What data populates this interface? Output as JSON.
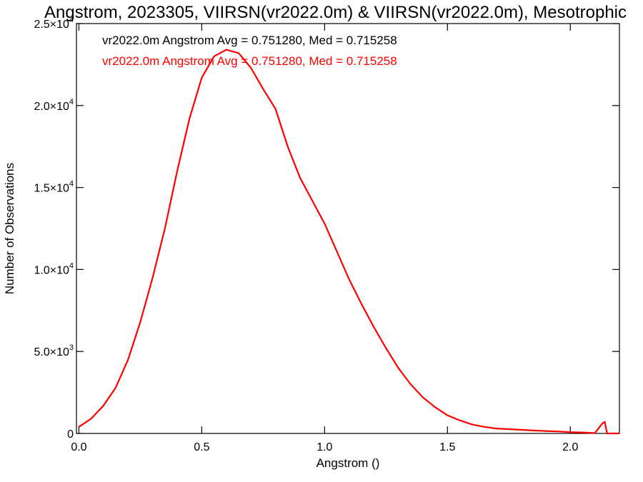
{
  "chart_data": {
    "type": "line",
    "title": "Angstrom, 2023305, VIIRSN(vr2022.0m) & VIIRSN(vr2022.0m), Mesotrophic",
    "xlabel": "Angstrom ()",
    "ylabel": "Number of Observations",
    "xlim": [
      -0.01,
      2.2
    ],
    "ylim": [
      0,
      25000
    ],
    "xticks": [
      0.0,
      0.5,
      1.0,
      1.5,
      2.0
    ],
    "xtick_labels": [
      "0.0",
      "0.5",
      "1.0",
      "1.5",
      "2.0"
    ],
    "yticks": [
      0,
      5000,
      10000,
      15000,
      20000,
      25000
    ],
    "ytick_labels": [
      {
        "mant": "0",
        "exp": ""
      },
      {
        "mant": "5.0×10",
        "exp": "3"
      },
      {
        "mant": "1.0×10",
        "exp": "4"
      },
      {
        "mant": "1.5×10",
        "exp": "4"
      },
      {
        "mant": "2.0×10",
        "exp": "4"
      },
      {
        "mant": "2.5×10",
        "exp": "4"
      }
    ],
    "legend": [
      {
        "text": "vr2022.0m Angstrom Avg = 0.751280, Med = 0.715258",
        "color": "#000000"
      },
      {
        "text": "vr2022.0m Angstrom Avg = 0.751280, Med = 0.715258",
        "color": "#ff0000"
      }
    ],
    "grid": false,
    "series": [
      {
        "color": "#ff0000",
        "x": [
          0.0,
          0.05,
          0.1,
          0.15,
          0.2,
          0.25,
          0.3,
          0.35,
          0.4,
          0.45,
          0.5,
          0.55,
          0.6,
          0.65,
          0.7,
          0.75,
          0.8,
          0.85,
          0.9,
          0.95,
          1.0,
          1.05,
          1.1,
          1.15,
          1.2,
          1.25,
          1.3,
          1.35,
          1.4,
          1.45,
          1.5,
          1.55,
          1.6,
          1.65,
          1.7,
          1.75,
          1.8,
          1.85,
          1.9,
          1.95,
          2.0,
          2.05,
          2.1,
          2.13,
          2.14,
          2.15,
          2.2
        ],
        "y": [
          400,
          900,
          1700,
          2800,
          4500,
          6800,
          9500,
          12500,
          16000,
          19200,
          21700,
          23000,
          23400,
          23200,
          22300,
          21000,
          19800,
          17500,
          15600,
          14200,
          12800,
          11100,
          9400,
          7900,
          6500,
          5200,
          4000,
          3000,
          2200,
          1600,
          1100,
          800,
          550,
          400,
          300,
          260,
          220,
          180,
          150,
          120,
          80,
          60,
          20,
          600,
          700,
          0,
          0
        ]
      }
    ]
  }
}
